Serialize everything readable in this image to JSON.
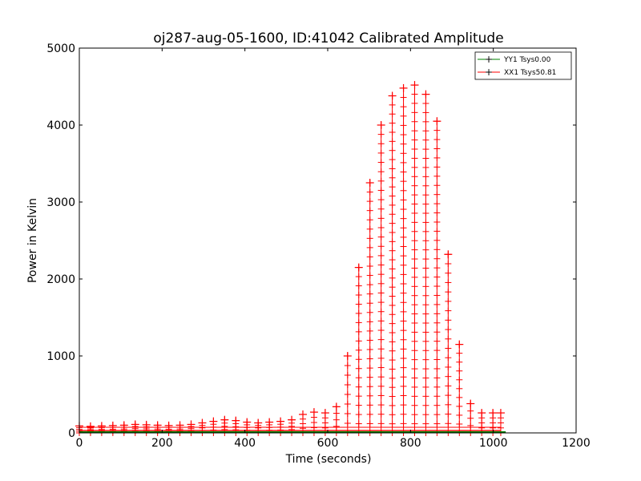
{
  "colors": {
    "yy1": "#008000",
    "xx1": "#ff0000"
  },
  "chart_data": {
    "type": "line",
    "title": "oj287-aug-05-1600, ID:41042 Calibrated Amplitude",
    "xlabel": "Time (seconds)",
    "ylabel": "Power in Kelvin",
    "xlim": [
      0,
      1200
    ],
    "ylim": [
      0,
      5000
    ],
    "xticks": [
      "0",
      "200",
      "400",
      "600",
      "800",
      "1000",
      "1200"
    ],
    "yticks": [
      "0",
      "1000",
      "2000",
      "3000",
      "4000",
      "5000"
    ],
    "grid": false,
    "legend_position": "top-right",
    "marker": "+",
    "series": [
      {
        "name": "YY1 Tsys0.00",
        "x": [
          0,
          1030
        ],
        "y": [
          0,
          0
        ]
      },
      {
        "name": "XX1 Tsys50.81",
        "x": [
          0,
          27,
          54,
          81,
          108,
          135,
          162,
          189,
          216,
          243,
          270,
          297,
          324,
          351,
          378,
          405,
          432,
          459,
          486,
          513,
          540,
          567,
          594,
          621,
          648,
          675,
          702,
          729,
          756,
          783,
          810,
          837,
          864,
          891,
          918,
          945,
          972,
          999,
          1018
        ],
        "y": [
          90,
          85,
          90,
          95,
          100,
          110,
          105,
          100,
          95,
          100,
          110,
          130,
          150,
          170,
          160,
          140,
          130,
          140,
          150,
          170,
          240,
          270,
          260,
          340,
          1000,
          2150,
          3250,
          4000,
          4380,
          4480,
          4520,
          4400,
          4050,
          2320,
          1150,
          380,
          260,
          260,
          260
        ]
      }
    ]
  }
}
